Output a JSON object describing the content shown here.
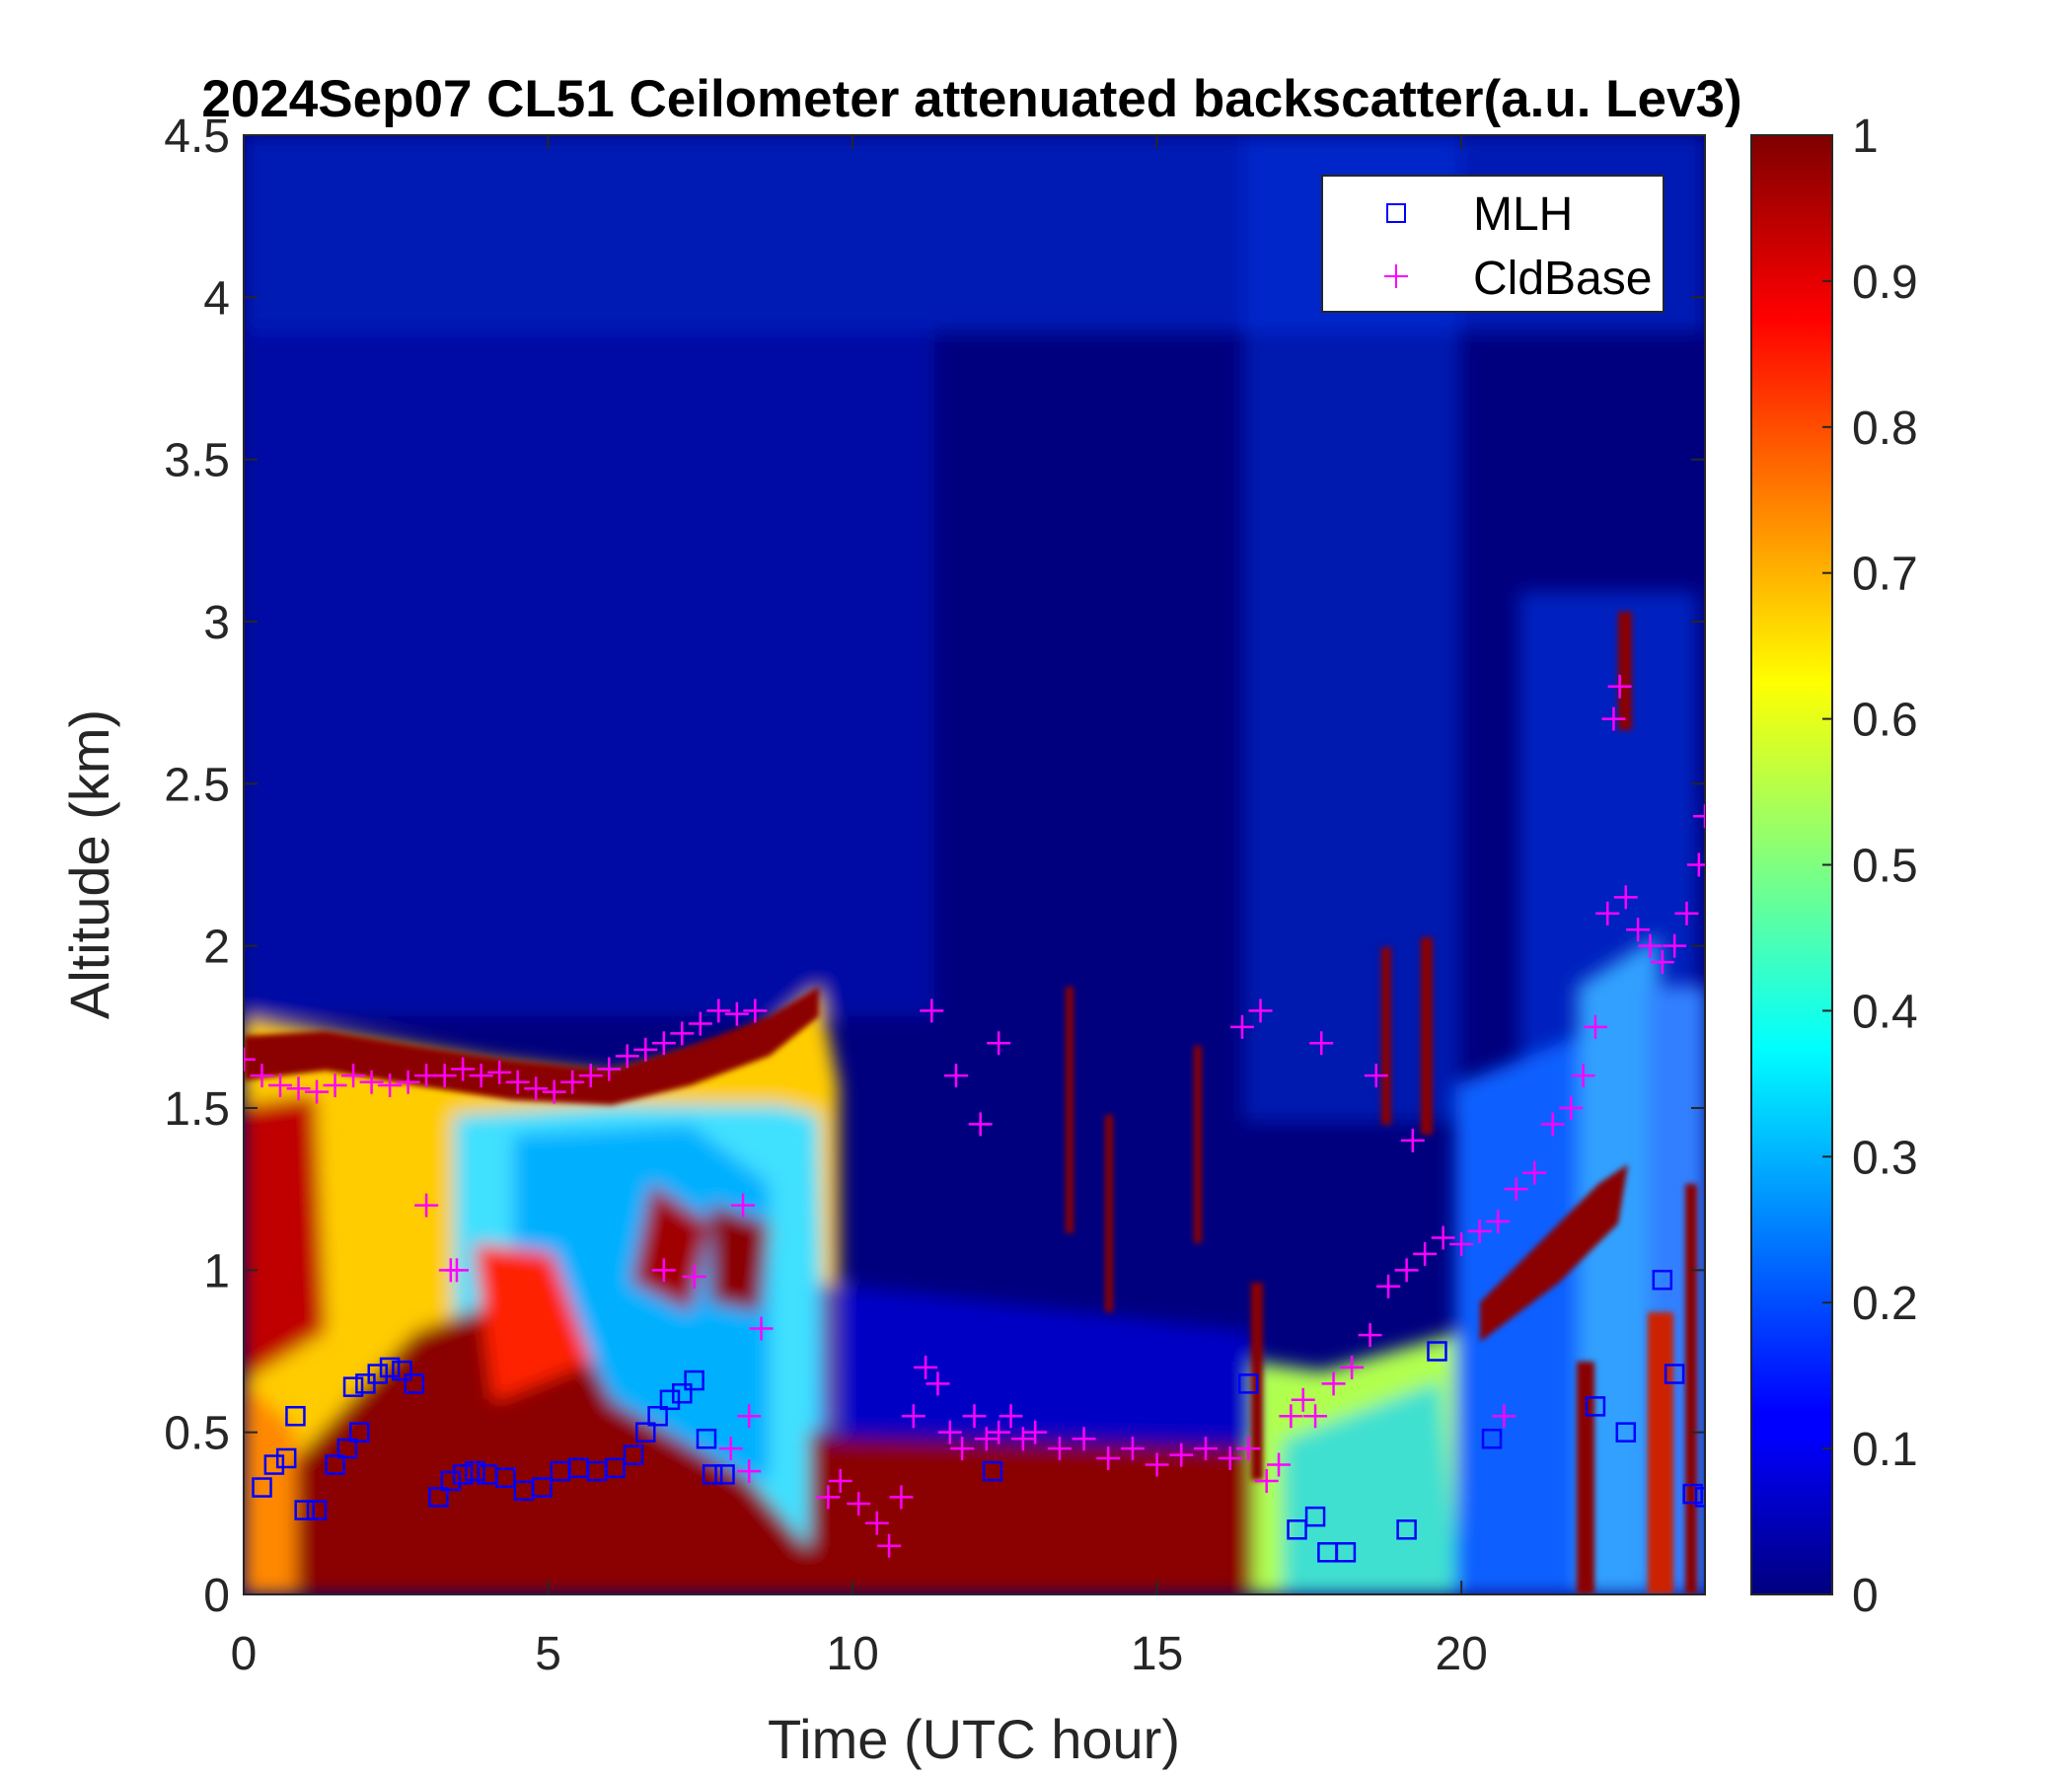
{
  "chart_data": {
    "type": "heatmap",
    "title": "2024Sep07 CL51 Ceilometer attenuated backscatter(a.u. Lev3)",
    "xlabel": "Time (UTC hour)",
    "ylabel": "Altitude (km)",
    "xlim": [
      0,
      24
    ],
    "ylim": [
      0,
      4.5
    ],
    "x_ticks": [
      0,
      5,
      10,
      15,
      20
    ],
    "x_tick_labels": [
      "0",
      "5",
      "10",
      "15",
      "20"
    ],
    "y_ticks": [
      0,
      0.5,
      1,
      1.5,
      2,
      2.5,
      3,
      3.5,
      4,
      4.5
    ],
    "y_tick_labels": [
      "0",
      "0.5",
      "1",
      "1.5",
      "2",
      "2.5",
      "3",
      "3.5",
      "4",
      "4.5"
    ],
    "colorbar": {
      "colormap": "jet",
      "range": [
        0,
        1
      ],
      "ticks": [
        0,
        0.1,
        0.2,
        0.3,
        0.4,
        0.5,
        0.6,
        0.7,
        0.8,
        0.9,
        1
      ],
      "tick_labels": [
        "0",
        "0.1",
        "0.2",
        "0.3",
        "0.4",
        "0.5",
        "0.6",
        "0.7",
        "0.8",
        "0.9",
        "1"
      ]
    },
    "legend": {
      "position": "top-right",
      "entries": [
        {
          "name": "MLH",
          "marker": "square",
          "color": "#0000ff"
        },
        {
          "name": "CldBase",
          "marker": "plus",
          "color": "#ff00ff"
        }
      ]
    },
    "series": [
      {
        "name": "MLH",
        "x": [
          0.3,
          0.5,
          0.7,
          0.85,
          1.0,
          1.2,
          1.5,
          1.7,
          1.8,
          1.9,
          2.0,
          2.2,
          2.4,
          2.6,
          2.8,
          3.2,
          3.4,
          3.6,
          3.8,
          4.0,
          4.3,
          4.6,
          4.9,
          5.2,
          5.5,
          5.8,
          6.1,
          6.4,
          6.6,
          6.8,
          7.0,
          7.2,
          7.4,
          7.6,
          7.7,
          7.9,
          12.3,
          16.5,
          17.3,
          17.6,
          17.8,
          18.1,
          19.1,
          19.6,
          20.5,
          22.2,
          22.7,
          23.3,
          23.5,
          23.8,
          24.0
        ],
        "y": [
          0.33,
          0.4,
          0.42,
          0.55,
          0.26,
          0.26,
          0.4,
          0.45,
          0.64,
          0.5,
          0.65,
          0.68,
          0.7,
          0.69,
          0.65,
          0.3,
          0.35,
          0.37,
          0.38,
          0.37,
          0.36,
          0.32,
          0.33,
          0.38,
          0.39,
          0.38,
          0.39,
          0.43,
          0.5,
          0.55,
          0.6,
          0.62,
          0.66,
          0.48,
          0.37,
          0.37,
          0.38,
          0.65,
          0.2,
          0.24,
          0.13,
          0.13,
          0.2,
          0.75,
          0.48,
          0.58,
          0.5,
          0.97,
          0.68,
          0.31,
          0.3
        ]
      },
      {
        "name": "CldBase",
        "x": [
          0.0,
          0.3,
          0.6,
          0.9,
          1.2,
          1.5,
          1.8,
          2.1,
          2.4,
          2.7,
          3.0,
          3.3,
          3.6,
          3.9,
          4.2,
          4.5,
          4.8,
          5.1,
          5.4,
          5.7,
          6.0,
          6.3,
          6.6,
          6.9,
          7.2,
          7.5,
          7.8,
          8.1,
          8.4,
          3.0,
          3.4,
          3.5,
          6.9,
          7.4,
          8.2,
          8.3,
          8.5,
          8.0,
          8.3,
          9.6,
          9.8,
          10.1,
          10.4,
          10.6,
          10.8,
          11.0,
          11.2,
          11.4,
          11.6,
          11.8,
          12.0,
          12.2,
          12.4,
          12.6,
          12.8,
          13.0,
          13.4,
          13.8,
          14.2,
          14.6,
          15.0,
          15.4,
          15.8,
          16.2,
          16.5,
          16.8,
          17.0,
          17.2,
          17.4,
          17.6,
          17.9,
          18.2,
          18.5,
          18.8,
          19.1,
          19.4,
          19.7,
          20.0,
          20.3,
          20.6,
          20.9,
          21.2,
          21.5,
          21.8,
          22.0,
          22.2,
          22.4,
          22.5,
          22.6,
          22.7,
          22.9,
          23.1,
          23.3,
          23.5,
          23.7,
          23.9,
          24.0,
          11.3,
          11.7,
          12.1,
          12.4,
          16.4,
          16.7,
          17.7,
          18.6,
          19.2,
          20.7
        ],
        "y": [
          1.65,
          1.6,
          1.57,
          1.56,
          1.55,
          1.57,
          1.6,
          1.58,
          1.57,
          1.58,
          1.6,
          1.6,
          1.62,
          1.6,
          1.61,
          1.58,
          1.56,
          1.55,
          1.58,
          1.6,
          1.62,
          1.66,
          1.68,
          1.7,
          1.73,
          1.76,
          1.8,
          1.79,
          1.8,
          1.2,
          1.0,
          1.0,
          1.0,
          0.98,
          1.2,
          0.55,
          0.82,
          0.45,
          0.38,
          0.3,
          0.35,
          0.28,
          0.22,
          0.15,
          0.3,
          0.55,
          0.7,
          0.65,
          0.5,
          0.45,
          0.55,
          0.48,
          0.5,
          0.55,
          0.48,
          0.5,
          0.45,
          0.48,
          0.42,
          0.45,
          0.4,
          0.43,
          0.45,
          0.42,
          0.45,
          0.35,
          0.4,
          0.55,
          0.6,
          0.55,
          0.65,
          0.7,
          0.8,
          0.95,
          1.0,
          1.05,
          1.1,
          1.08,
          1.12,
          1.15,
          1.25,
          1.3,
          1.45,
          1.5,
          1.6,
          1.75,
          2.1,
          2.7,
          2.8,
          2.15,
          2.05,
          2.0,
          1.95,
          2.0,
          2.1,
          2.25,
          2.4,
          1.8,
          1.6,
          1.45,
          1.7,
          1.75,
          1.8,
          1.7,
          1.6,
          1.4,
          0.55
        ]
      }
    ]
  }
}
